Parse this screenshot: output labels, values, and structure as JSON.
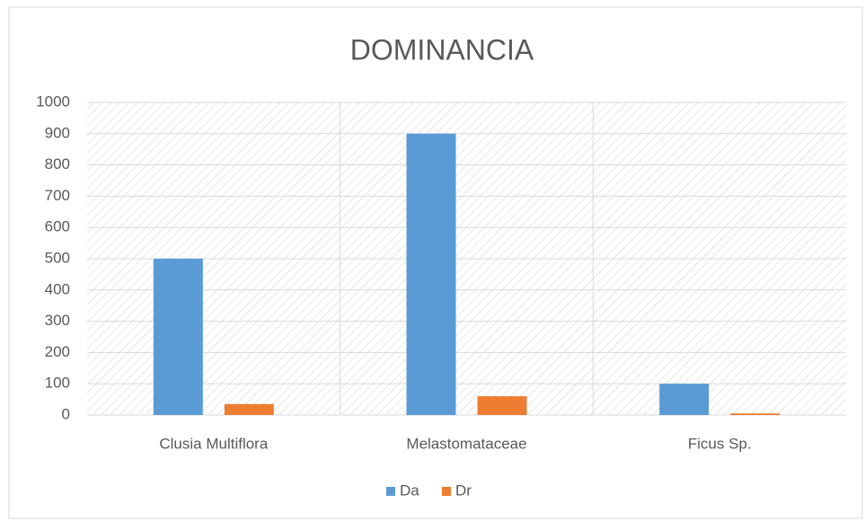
{
  "chart_data": {
    "type": "bar",
    "title": "DOMINANCIA",
    "categories": [
      "Clusia Multiflora",
      "Melastomataceae",
      "Ficus Sp."
    ],
    "series": [
      {
        "name": "Da",
        "color": "#5b9bd5",
        "values": [
          500,
          900,
          100
        ]
      },
      {
        "name": "Dr",
        "color": "#ed7d31",
        "values": [
          35,
          60,
          5
        ]
      }
    ],
    "ylim": [
      0,
      1000
    ],
    "yticks": [
      0,
      100,
      200,
      300,
      400,
      500,
      600,
      700,
      800,
      900,
      1000
    ],
    "grid": true,
    "legend": "bottom"
  }
}
